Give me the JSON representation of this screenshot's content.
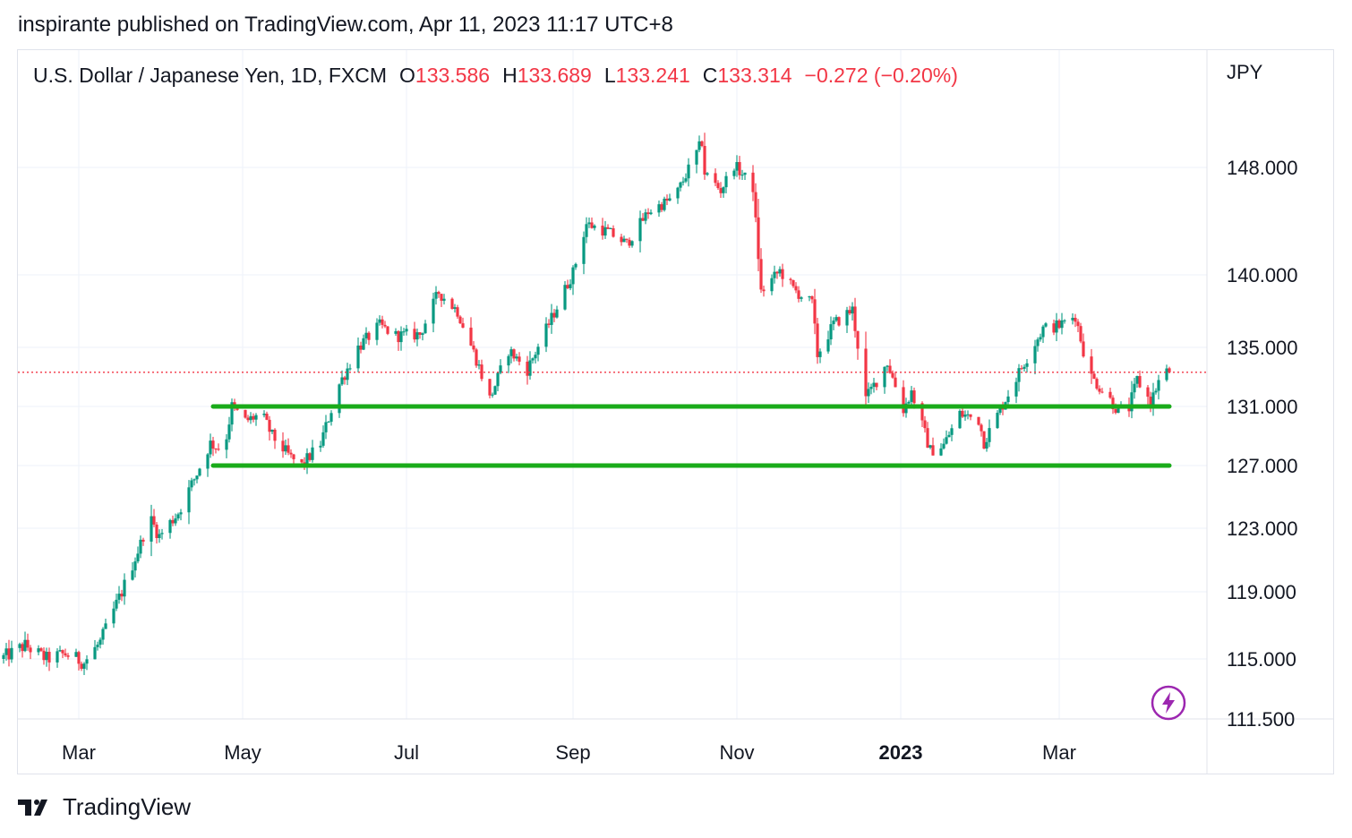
{
  "header": {
    "published": "inspirante published on TradingView.com, Apr 11, 2023 11:17 UTC+8"
  },
  "legend": {
    "symbol": "U.S. Dollar / Japanese Yen, 1D, FXCM",
    "open_label": "O",
    "open": "133.586",
    "high_label": "H",
    "high": "133.689",
    "low_label": "L",
    "low": "133.241",
    "close_label": "C",
    "close": "133.314",
    "change": "−0.272 (−0.20%)"
  },
  "footer": {
    "brand": "TradingView",
    "logo": "tradingview-logo-icon"
  },
  "colors": {
    "up": "#089981",
    "down": "#f23645",
    "support": "#1aab1a",
    "grid": "#f0f3fa",
    "last_price": "#f23645",
    "bolt": "#9c27b0"
  },
  "chart_data": {
    "type": "candlestick",
    "currency": "JPY",
    "y_ticks": [
      "148.000",
      "140.000",
      "135.000",
      "131.000",
      "127.000",
      "123.000",
      "119.000",
      "115.000",
      "111.500"
    ],
    "y_tick_values": [
      148.0,
      140.0,
      135.0,
      131.0,
      127.0,
      123.0,
      119.0,
      115.0,
      111.5
    ],
    "y_range": [
      111.5,
      155
    ],
    "x_range": [
      "2022-02-01",
      "2023-04-14"
    ],
    "x_ticks": [
      {
        "label": "Mar",
        "date": "2022-03-01",
        "bold": false
      },
      {
        "label": "May",
        "date": "2022-05-01",
        "bold": false
      },
      {
        "label": "Jul",
        "date": "2022-07-01",
        "bold": false
      },
      {
        "label": "Sep",
        "date": "2022-09-01",
        "bold": false
      },
      {
        "label": "Nov",
        "date": "2022-11-01",
        "bold": false
      },
      {
        "label": "2023",
        "date": "2023-01-01",
        "bold": true
      },
      {
        "label": "Mar",
        "date": "2023-03-01",
        "bold": false
      }
    ],
    "path_points": [
      [
        "2022-02-01",
        115.0
      ],
      [
        "2022-02-10",
        115.8
      ],
      [
        "2022-02-18",
        115.0
      ],
      [
        "2022-02-25",
        115.3
      ],
      [
        "2022-03-04",
        114.8
      ],
      [
        "2022-03-10",
        116.0
      ],
      [
        "2022-03-18",
        119.0
      ],
      [
        "2022-03-25",
        122.0
      ],
      [
        "2022-03-28",
        123.8
      ],
      [
        "2022-04-01",
        122.5
      ],
      [
        "2022-04-08",
        124.0
      ],
      [
        "2022-04-15",
        126.5
      ],
      [
        "2022-04-20",
        128.5
      ],
      [
        "2022-04-25",
        128.0
      ],
      [
        "2022-04-28",
        131.0
      ],
      [
        "2022-05-03",
        130.0
      ],
      [
        "2022-05-09",
        130.5
      ],
      [
        "2022-05-13",
        129.0
      ],
      [
        "2022-05-20",
        127.5
      ],
      [
        "2022-05-24",
        127.0
      ],
      [
        "2022-05-31",
        128.5
      ],
      [
        "2022-06-07",
        132.5
      ],
      [
        "2022-06-14",
        135.0
      ],
      [
        "2022-06-22",
        136.5
      ],
      [
        "2022-06-28",
        135.8
      ],
      [
        "2022-07-07",
        135.9
      ],
      [
        "2022-07-14",
        138.8
      ],
      [
        "2022-07-21",
        137.5
      ],
      [
        "2022-07-28",
        134.2
      ],
      [
        "2022-08-02",
        131.5
      ],
      [
        "2022-08-09",
        134.8
      ],
      [
        "2022-08-16",
        133.5
      ],
      [
        "2022-08-25",
        137.0
      ],
      [
        "2022-09-02",
        140.2
      ],
      [
        "2022-09-07",
        143.8
      ],
      [
        "2022-09-15",
        143.2
      ],
      [
        "2022-09-22",
        142.3
      ],
      [
        "2022-09-30",
        144.7
      ],
      [
        "2022-10-10",
        145.8
      ],
      [
        "2022-10-20",
        149.9
      ],
      [
        "2022-10-21",
        147.6
      ],
      [
        "2022-10-27",
        146.3
      ],
      [
        "2022-11-01",
        148.2
      ],
      [
        "2022-11-08",
        146.5
      ],
      [
        "2022-11-11",
        138.8
      ],
      [
        "2022-11-18",
        140.3
      ],
      [
        "2022-11-23",
        139.0
      ],
      [
        "2022-11-30",
        138.0
      ],
      [
        "2022-12-02",
        134.5
      ],
      [
        "2022-12-08",
        136.6
      ],
      [
        "2022-12-15",
        137.6
      ],
      [
        "2022-12-20",
        131.5
      ],
      [
        "2022-12-28",
        134.0
      ],
      [
        "2023-01-03",
        130.8
      ],
      [
        "2023-01-06",
        132.0
      ],
      [
        "2023-01-13",
        128.0
      ],
      [
        "2023-01-18",
        128.4
      ],
      [
        "2023-01-24",
        130.5
      ],
      [
        "2023-01-31",
        130.1
      ],
      [
        "2023-02-02",
        128.6
      ],
      [
        "2023-02-10",
        131.5
      ],
      [
        "2023-02-17",
        134.0
      ],
      [
        "2023-02-24",
        136.3
      ],
      [
        "2023-03-02",
        136.5
      ],
      [
        "2023-03-08",
        137.2
      ],
      [
        "2023-03-13",
        133.2
      ],
      [
        "2023-03-20",
        131.7
      ],
      [
        "2023-03-24",
        130.7
      ],
      [
        "2023-03-28",
        130.9
      ],
      [
        "2023-03-31",
        132.8
      ],
      [
        "2023-04-05",
        131.3
      ],
      [
        "2023-04-10",
        133.6
      ],
      [
        "2023-04-11",
        133.3
      ]
    ],
    "last_candle": {
      "date": "2023-04-11",
      "open": 133.586,
      "high": 133.689,
      "low": 133.241,
      "close": 133.314
    },
    "last_price": 133.314,
    "support_lines": [
      {
        "price": 131.0,
        "from": "2022-04-20",
        "to": "2023-04-11"
      },
      {
        "price": 127.0,
        "from": "2022-04-20",
        "to": "2023-04-11"
      }
    ]
  }
}
